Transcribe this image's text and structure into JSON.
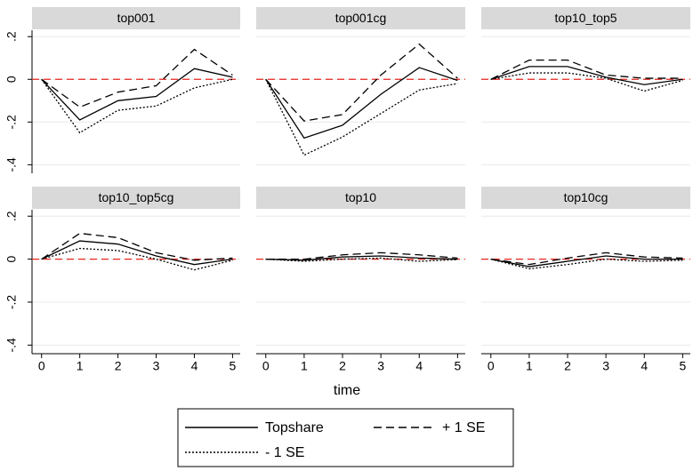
{
  "chart_data": {
    "type": "line",
    "xlabel": "time",
    "x": [
      0,
      1,
      2,
      3,
      4,
      5
    ],
    "xlim": [
      -0.25,
      5.2
    ],
    "xticks": [
      0,
      1,
      2,
      3,
      4,
      5
    ],
    "ylim": [
      -0.44,
      0.23
    ],
    "yticks": [
      {
        "value": 0.2,
        "label": ".2"
      },
      0,
      {
        "value": -0.2,
        "label": "-.2"
      },
      {
        "value": -0.4,
        "label": "-.4"
      }
    ],
    "grid": true,
    "refline": {
      "value": 0,
      "color": "#e8251f"
    },
    "legend": [
      {
        "name": "Topshare",
        "color": "#000000",
        "dash": "solid"
      },
      {
        "name": "+ 1 SE",
        "color": "#000000",
        "dash": "dashed"
      },
      {
        "name": "- 1 SE",
        "color": "#000000",
        "dash": "dotted"
      }
    ],
    "panels": [
      {
        "title": "top001",
        "series": [
          {
            "values": [
              0,
              -0.19,
              -0.1,
              -0.08,
              0.05,
              0.01
            ]
          },
          {
            "values": [
              0,
              -0.13,
              -0.06,
              -0.03,
              0.14,
              0.02
            ]
          },
          {
            "values": [
              0,
              -0.25,
              -0.145,
              -0.125,
              -0.04,
              0
            ]
          }
        ]
      },
      {
        "title": "top001cg",
        "series": [
          {
            "values": [
              0,
              -0.275,
              -0.215,
              -0.07,
              0.055,
              -0.005
            ]
          },
          {
            "values": [
              0,
              -0.195,
              -0.165,
              0.02,
              0.165,
              0.005
            ]
          },
          {
            "values": [
              0,
              -0.355,
              -0.27,
              -0.16,
              -0.05,
              -0.02
            ]
          }
        ]
      },
      {
        "title": "top10_top5",
        "series": [
          {
            "values": [
              0,
              0.06,
              0.06,
              0.01,
              -0.025,
              0
            ]
          },
          {
            "values": [
              0,
              0.09,
              0.09,
              0.02,
              0.005,
              0.005
            ]
          },
          {
            "values": [
              0,
              0.03,
              0.03,
              0.005,
              -0.055,
              -0.005
            ]
          }
        ]
      },
      {
        "title": "top10_top5cg",
        "series": [
          {
            "values": [
              0,
              0.085,
              0.07,
              0.015,
              -0.025,
              0
            ]
          },
          {
            "values": [
              0,
              0.12,
              0.1,
              0.03,
              -0.005,
              0.005
            ]
          },
          {
            "values": [
              0,
              0.05,
              0.04,
              0,
              -0.05,
              -0.005
            ]
          }
        ]
      },
      {
        "title": "top10",
        "series": [
          {
            "values": [
              0,
              -0.005,
              0.01,
              0.015,
              0.005,
              0
            ]
          },
          {
            "values": [
              0,
              0,
              0.02,
              0.03,
              0.02,
              0.005
            ]
          },
          {
            "values": [
              0,
              -0.01,
              0,
              0.005,
              -0.01,
              -0.002
            ]
          }
        ]
      },
      {
        "title": "top10cg",
        "series": [
          {
            "values": [
              0,
              -0.035,
              -0.01,
              0.015,
              0,
              0
            ]
          },
          {
            "values": [
              0,
              -0.025,
              0.005,
              0.03,
              0.01,
              0.005
            ]
          },
          {
            "values": [
              0,
              -0.045,
              -0.025,
              0,
              -0.01,
              -0.005
            ]
          }
        ]
      }
    ]
  }
}
